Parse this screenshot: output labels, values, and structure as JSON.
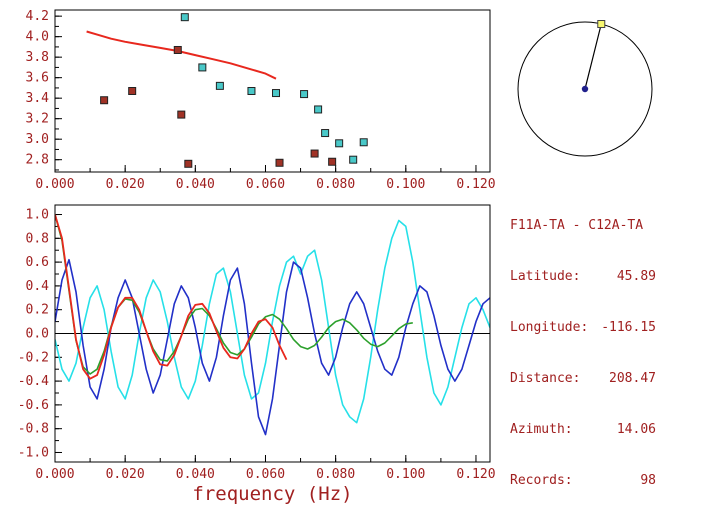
{
  "colors": {
    "axis_text": "#a02020",
    "station_dot": "#20208c",
    "event_marker": "#f8f870",
    "curve_red": "#e8281e",
    "picks_dark_red": "#a03226",
    "picks_cyan": "#49c8c8",
    "waveform_blue": "#2230c8",
    "waveform_cyan": "#26e0e8",
    "fit_green": "#2ca02c"
  },
  "info": {
    "title": "F11A-TA - C12A-TA",
    "fields": [
      {
        "label": "Latitude:",
        "value": "45.89"
      },
      {
        "label": "Longitude:",
        "value": "-116.15"
      },
      {
        "label": "Distance:",
        "value": "208.47"
      },
      {
        "label": "Azimuth:",
        "value": "14.06"
      },
      {
        "label": "Records:",
        "value": "98"
      }
    ]
  },
  "azimuth_indicator": {
    "azimuth_deg": 14.06
  },
  "chart_data": [
    {
      "type": "scatter",
      "title": "",
      "xlabel": "",
      "ylabel": "",
      "xlim": [
        0,
        0.124
      ],
      "ylim": [
        2.68,
        4.26
      ],
      "x_minor_step": 0.01,
      "y_minor_step": 0.1,
      "grid": false,
      "legend": "none",
      "xticks": [
        {
          "v": 0.0,
          "label": "0.000"
        },
        {
          "v": 0.02,
          "label": "0.020"
        },
        {
          "v": 0.04,
          "label": "0.040"
        },
        {
          "v": 0.06,
          "label": "0.060"
        },
        {
          "v": 0.08,
          "label": "0.080"
        },
        {
          "v": 0.1,
          "label": "0.100"
        },
        {
          "v": 0.12,
          "label": "0.120"
        }
      ],
      "yticks": [
        {
          "v": 4.2,
          "label": "4.2"
        },
        {
          "v": 4.0,
          "label": "4.0"
        },
        {
          "v": 3.8,
          "label": "3.8"
        },
        {
          "v": 3.6,
          "label": "3.6"
        },
        {
          "v": 3.4,
          "label": "3.4"
        },
        {
          "v": 3.2,
          "label": "3.2"
        },
        {
          "v": 3.0,
          "label": "3.0"
        },
        {
          "v": 2.8,
          "label": "2.8"
        }
      ],
      "series": [
        {
          "name": "reference-dispersion-curve",
          "kind": "line",
          "color": "#e8281e",
          "width": 2,
          "x": [
            0.009,
            0.012,
            0.016,
            0.02,
            0.025,
            0.03,
            0.035,
            0.04,
            0.045,
            0.05,
            0.055,
            0.06,
            0.063
          ],
          "y": [
            4.05,
            4.02,
            3.98,
            3.95,
            3.92,
            3.89,
            3.86,
            3.82,
            3.78,
            3.74,
            3.69,
            3.64,
            3.59
          ]
        },
        {
          "name": "picks-dark-red",
          "kind": "scatter",
          "color": "#a03226",
          "marker": "square",
          "points": [
            [
              0.014,
              3.38
            ],
            [
              0.022,
              3.47
            ],
            [
              0.035,
              3.87
            ],
            [
              0.036,
              3.24
            ],
            [
              0.038,
              2.76
            ],
            [
              0.064,
              2.77
            ],
            [
              0.074,
              2.86
            ],
            [
              0.079,
              2.78
            ]
          ]
        },
        {
          "name": "picks-cyan",
          "kind": "scatter",
          "color": "#49c8c8",
          "marker": "square",
          "points": [
            [
              0.037,
              4.19
            ],
            [
              0.042,
              3.7
            ],
            [
              0.047,
              3.52
            ],
            [
              0.056,
              3.47
            ],
            [
              0.063,
              3.45
            ],
            [
              0.071,
              3.44
            ],
            [
              0.075,
              3.29
            ],
            [
              0.077,
              3.06
            ],
            [
              0.081,
              2.96
            ],
            [
              0.085,
              2.8
            ],
            [
              0.088,
              2.97
            ]
          ]
        }
      ]
    },
    {
      "type": "line",
      "title": "",
      "xlabel": "frequency (Hz)",
      "ylabel": "",
      "xlim": [
        0,
        0.124
      ],
      "ylim": [
        -1.08,
        1.08
      ],
      "zero_line": true,
      "x_minor_step": 0.01,
      "y_minor_step": 0.1,
      "grid": false,
      "legend": "none",
      "xticks": [
        {
          "v": 0.0,
          "label": "0.000"
        },
        {
          "v": 0.02,
          "label": "0.020"
        },
        {
          "v": 0.04,
          "label": "0.040"
        },
        {
          "v": 0.06,
          "label": "0.060"
        },
        {
          "v": 0.08,
          "label": "0.080"
        },
        {
          "v": 0.1,
          "label": "0.100"
        },
        {
          "v": 0.12,
          "label": "0.120"
        }
      ],
      "yticks": [
        {
          "v": 1.0,
          "label": "1.0"
        },
        {
          "v": 0.8,
          "label": "0.8"
        },
        {
          "v": 0.6,
          "label": "0.6"
        },
        {
          "v": 0.4,
          "label": "0.4"
        },
        {
          "v": 0.2,
          "label": "0.2"
        },
        {
          "v": 0.0,
          "label": "0.0"
        },
        {
          "v": -0.2,
          "label": "-0.2"
        },
        {
          "v": -0.4,
          "label": "-0.4"
        },
        {
          "v": -0.6,
          "label": "-0.6"
        },
        {
          "v": -0.8,
          "label": "-0.8"
        },
        {
          "v": -1.0,
          "label": "-1.0"
        }
      ],
      "series": [
        {
          "name": "waveform-cyan",
          "kind": "line",
          "color": "#26e0e8",
          "width": 1.6,
          "x0": 0,
          "dx": 0.002,
          "y": [
            -0.05,
            -0.3,
            -0.4,
            -0.25,
            0.05,
            0.3,
            0.4,
            0.2,
            -0.15,
            -0.45,
            -0.55,
            -0.35,
            0.0,
            0.3,
            0.45,
            0.35,
            0.1,
            -0.2,
            -0.45,
            -0.55,
            -0.4,
            -0.1,
            0.25,
            0.5,
            0.55,
            0.35,
            0.0,
            -0.35,
            -0.55,
            -0.5,
            -0.25,
            0.1,
            0.4,
            0.6,
            0.65,
            0.5,
            0.65,
            0.7,
            0.45,
            0.05,
            -0.35,
            -0.6,
            -0.7,
            -0.75,
            -0.55,
            -0.2,
            0.2,
            0.55,
            0.8,
            0.95,
            0.9,
            0.6,
            0.2,
            -0.2,
            -0.5,
            -0.6,
            -0.45,
            -0.2,
            0.05,
            0.25,
            0.3,
            0.2,
            0.05
          ]
        },
        {
          "name": "waveform-blue",
          "kind": "line",
          "color": "#2230c8",
          "width": 1.6,
          "x0": 0,
          "dx": 0.002,
          "y": [
            0.1,
            0.45,
            0.62,
            0.35,
            -0.1,
            -0.45,
            -0.55,
            -0.3,
            0.05,
            0.3,
            0.45,
            0.3,
            0.0,
            -0.3,
            -0.5,
            -0.35,
            -0.05,
            0.25,
            0.4,
            0.3,
            0.05,
            -0.25,
            -0.4,
            -0.2,
            0.15,
            0.45,
            0.55,
            0.25,
            -0.25,
            -0.7,
            -0.85,
            -0.55,
            -0.1,
            0.35,
            0.6,
            0.55,
            0.3,
            0.0,
            -0.25,
            -0.35,
            -0.2,
            0.05,
            0.25,
            0.35,
            0.25,
            0.05,
            -0.15,
            -0.3,
            -0.35,
            -0.2,
            0.05,
            0.25,
            0.4,
            0.35,
            0.15,
            -0.1,
            -0.3,
            -0.4,
            -0.3,
            -0.1,
            0.1,
            0.25,
            0.3
          ]
        },
        {
          "name": "fit-green",
          "kind": "line",
          "color": "#2ca02c",
          "width": 1.6,
          "x0": 0,
          "dx": 0.002,
          "y": [
            1.0,
            0.78,
            0.36,
            -0.06,
            -0.28,
            -0.34,
            -0.3,
            -0.15,
            0.06,
            0.22,
            0.29,
            0.28,
            0.18,
            0.02,
            -0.13,
            -0.22,
            -0.23,
            -0.15,
            -0.02,
            0.12,
            0.2,
            0.21,
            0.15,
            0.04,
            -0.08,
            -0.16,
            -0.18,
            -0.13,
            -0.03,
            0.08,
            0.14,
            0.16,
            0.12,
            0.04,
            -0.05,
            -0.11,
            -0.13,
            -0.1,
            -0.03,
            0.05,
            0.1,
            0.12,
            0.09,
            0.03,
            -0.04,
            -0.09,
            -0.11,
            -0.08,
            -0.02,
            0.04,
            0.08,
            0.09
          ]
        },
        {
          "name": "fit-red",
          "kind": "line",
          "color": "#e8281e",
          "width": 1.8,
          "x0": 0,
          "dx": 0.002,
          "y": [
            1.0,
            0.8,
            0.38,
            -0.05,
            -0.3,
            -0.38,
            -0.35,
            -0.18,
            0.05,
            0.22,
            0.3,
            0.3,
            0.2,
            0.02,
            -0.15,
            -0.26,
            -0.27,
            -0.18,
            -0.02,
            0.15,
            0.24,
            0.25,
            0.17,
            0.02,
            -0.12,
            -0.2,
            -0.21,
            -0.13,
            0.0,
            0.1,
            0.12,
            0.05,
            -0.1,
            -0.22
          ]
        }
      ]
    }
  ]
}
